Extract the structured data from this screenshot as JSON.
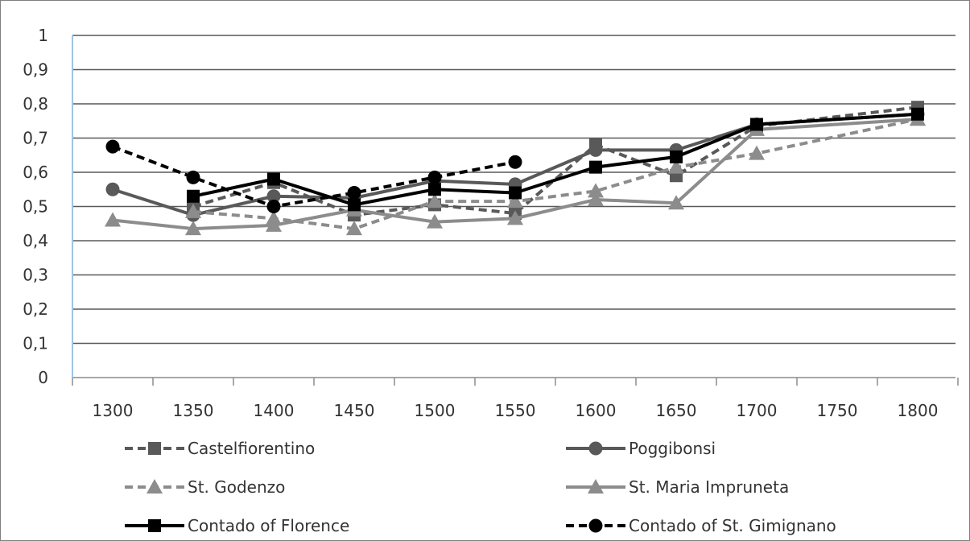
{
  "chart_data": {
    "type": "line",
    "title": "",
    "xlabel": "",
    "ylabel": "",
    "x": [
      1300,
      1350,
      1400,
      1450,
      1500,
      1550,
      1600,
      1650,
      1700,
      1750,
      1800
    ],
    "x_tick_labels": [
      "1300",
      "1350",
      "1400",
      "1450",
      "1500",
      "1550",
      "1600",
      "1650",
      "1700",
      "1750",
      "1800"
    ],
    "ylim": [
      0,
      1
    ],
    "y_tick_labels": [
      "0",
      "0,1",
      "0,2",
      "0,3",
      "0,4",
      "0,5",
      "0,6",
      "0,7",
      "0,8",
      "0,9",
      "1"
    ],
    "grid": true,
    "legend_position": "bottom",
    "series": [
      {
        "name": "Castelfiorentino",
        "color": "#595959",
        "dash": "dashed",
        "marker": "square",
        "points": [
          [
            1350,
            0.5
          ],
          [
            1400,
            0.57
          ],
          [
            1450,
            0.475
          ],
          [
            1500,
            0.505
          ],
          [
            1550,
            0.48
          ],
          [
            1600,
            0.68
          ],
          [
            1650,
            0.59
          ],
          [
            1700,
            0.735
          ],
          [
            1800,
            0.79
          ]
        ]
      },
      {
        "name": "Poggibonsi",
        "color": "#595959",
        "dash": "solid",
        "marker": "circle",
        "points": [
          [
            1300,
            0.55
          ],
          [
            1350,
            0.475
          ],
          [
            1400,
            0.53
          ],
          [
            1450,
            0.525
          ],
          [
            1500,
            0.575
          ],
          [
            1550,
            0.565
          ],
          [
            1600,
            0.665
          ],
          [
            1650,
            0.665
          ],
          [
            1700,
            0.74
          ],
          [
            1800,
            0.77
          ]
        ]
      },
      {
        "name": "St. Godenzo",
        "color": "#8c8c8c",
        "dash": "dashed",
        "marker": "triangle",
        "points": [
          [
            1350,
            0.485
          ],
          [
            1400,
            0.465
          ],
          [
            1450,
            0.435
          ],
          [
            1500,
            0.515
          ],
          [
            1550,
            0.515
          ],
          [
            1600,
            0.545
          ],
          [
            1650,
            0.615
          ],
          [
            1700,
            0.655
          ],
          [
            1800,
            0.755
          ]
        ]
      },
      {
        "name": "St. Maria Impruneta",
        "color": "#8c8c8c",
        "dash": "solid",
        "marker": "triangle",
        "points": [
          [
            1300,
            0.46
          ],
          [
            1350,
            0.435
          ],
          [
            1400,
            0.445
          ],
          [
            1450,
            0.49
          ],
          [
            1500,
            0.455
          ],
          [
            1550,
            0.465
          ],
          [
            1600,
            0.52
          ],
          [
            1650,
            0.51
          ],
          [
            1700,
            0.725
          ],
          [
            1800,
            0.755
          ]
        ]
      },
      {
        "name": "Contado of Florence",
        "color": "#000000",
        "dash": "solid",
        "marker": "square",
        "points": [
          [
            1350,
            0.53
          ],
          [
            1400,
            0.58
          ],
          [
            1450,
            0.505
          ],
          [
            1500,
            0.55
          ],
          [
            1550,
            0.54
          ],
          [
            1600,
            0.615
          ],
          [
            1650,
            0.645
          ],
          [
            1700,
            0.74
          ],
          [
            1800,
            0.77
          ]
        ]
      },
      {
        "name": "Contado of St. Gimignano",
        "color": "#000000",
        "dash": "dashed",
        "marker": "circle",
        "points": [
          [
            1300,
            0.675
          ],
          [
            1350,
            0.585
          ],
          [
            1400,
            0.5
          ],
          [
            1450,
            0.54
          ],
          [
            1500,
            0.585
          ],
          [
            1550,
            0.63
          ]
        ]
      }
    ]
  }
}
